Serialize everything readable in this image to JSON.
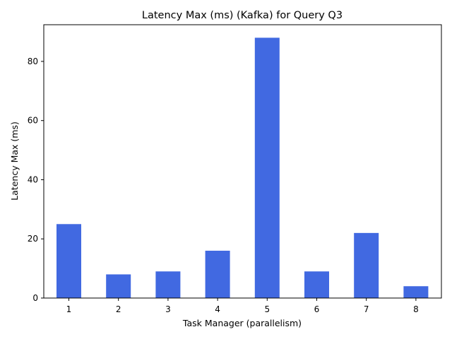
{
  "chart_data": {
    "type": "bar",
    "title": "Latency Max (ms) (Kafka) for Query Q3",
    "xlabel": "Task Manager (parallelism)",
    "ylabel": "Latency Max (ms)",
    "categories": [
      "1",
      "2",
      "3",
      "4",
      "5",
      "6",
      "7",
      "8"
    ],
    "values": [
      25,
      8,
      9,
      16,
      88,
      9,
      22,
      4
    ],
    "ylim": [
      0,
      92.4
    ],
    "yticks": [
      0,
      20,
      40,
      60,
      80
    ],
    "bar_color": "#4169e1",
    "grid": false,
    "legend": "none"
  }
}
